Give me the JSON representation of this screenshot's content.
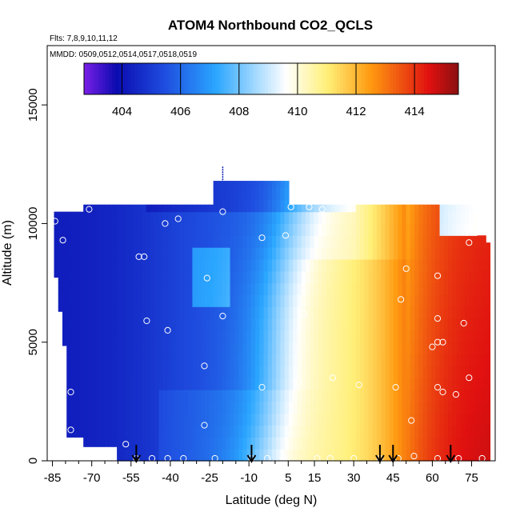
{
  "chart_data": {
    "type": "heatmap",
    "title": "ATOM4 Northbound CO2_QCLS",
    "subtitle_flights": "Flts: 7,8,9,10,11,12",
    "subtitle_dates": "MMDD: 0509,0512,0514,0517,0518,0519",
    "xlabel": "Latitude (deg N)",
    "ylabel": "Altitude (m)",
    "xlim": [
      -87,
      84
    ],
    "ylim": [
      0,
      17500
    ],
    "x_ticks": [
      -85,
      -70,
      -55,
      -40,
      -25,
      -10,
      5,
      15,
      30,
      45,
      60,
      75
    ],
    "y_ticks": [
      0,
      5000,
      10000,
      15000
    ],
    "colorbar": {
      "min": 402.7,
      "max": 415.5,
      "ticks": [
        404,
        406,
        408,
        410,
        412,
        414
      ],
      "colors": [
        "#7a1fe8",
        "#0b0bb0",
        "#1f4fe0",
        "#2aa6ff",
        "#ffffff",
        "#fff07a",
        "#ff9a10",
        "#e01010",
        "#8a1010"
      ],
      "color_stops": [
        402.7,
        403.8,
        405.5,
        407.2,
        409.6,
        411.0,
        412.5,
        414.5,
        415.5
      ]
    },
    "field_summary": [
      {
        "latitude_band": "-85 to -55",
        "typical_co2": 404.1
      },
      {
        "latitude_band": "-55 to -20",
        "typical_co2": 405.5
      },
      {
        "latitude_band": "-20 to 0",
        "typical_co2": 407.5
      },
      {
        "latitude_band": "0 to 20",
        "typical_co2": 410.5
      },
      {
        "latitude_band": "20 to 55",
        "typical_co2": 412.5
      },
      {
        "latitude_band": "55 to 80",
        "typical_co2": 414.5
      }
    ],
    "profile_latitudes_arrows": [
      -53,
      -9,
      40,
      45,
      67
    ],
    "sample_points": [
      {
        "lat": -84,
        "alt": 10100
      },
      {
        "lat": -81,
        "alt": 9300
      },
      {
        "lat": -78,
        "alt": 2900
      },
      {
        "lat": -78,
        "alt": 1300
      },
      {
        "lat": -71,
        "alt": 10600
      },
      {
        "lat": -57,
        "alt": 700
      },
      {
        "lat": -52,
        "alt": 8600
      },
      {
        "lat": -50,
        "alt": 8600
      },
      {
        "lat": -49,
        "alt": 5900
      },
      {
        "lat": -42,
        "alt": 10000
      },
      {
        "lat": -41,
        "alt": 5500
      },
      {
        "lat": -37,
        "alt": 10200
      },
      {
        "lat": -26,
        "alt": 7700
      },
      {
        "lat": -25,
        "alt": 11200
      },
      {
        "lat": -20,
        "alt": 6100
      },
      {
        "lat": -20,
        "alt": 10500
      },
      {
        "lat": -27,
        "alt": 4000
      },
      {
        "lat": -27,
        "alt": 1500
      },
      {
        "lat": -5,
        "alt": 9400
      },
      {
        "lat": -5,
        "alt": 3100
      },
      {
        "lat": 4,
        "alt": 9500
      },
      {
        "lat": 6,
        "alt": 10700
      },
      {
        "lat": 9,
        "alt": 3300
      },
      {
        "lat": 11,
        "alt": 6200
      },
      {
        "lat": 13,
        "alt": 10700
      },
      {
        "lat": 18,
        "alt": 10600
      },
      {
        "lat": 22,
        "alt": 3500
      },
      {
        "lat": 32,
        "alt": 3200
      },
      {
        "lat": 46,
        "alt": 3100
      },
      {
        "lat": 48,
        "alt": 6800
      },
      {
        "lat": 50,
        "alt": 8100
      },
      {
        "lat": 52,
        "alt": 1700
      },
      {
        "lat": 60,
        "alt": 4800
      },
      {
        "lat": 62,
        "alt": 5000
      },
      {
        "lat": 62,
        "alt": 6000
      },
      {
        "lat": 62,
        "alt": 7800
      },
      {
        "lat": 62,
        "alt": 3100
      },
      {
        "lat": 64,
        "alt": 2900
      },
      {
        "lat": 64,
        "alt": 5000
      },
      {
        "lat": 69,
        "alt": 2800
      },
      {
        "lat": 72,
        "alt": 5800
      },
      {
        "lat": 74,
        "alt": 3500
      },
      {
        "lat": 74,
        "alt": 9200
      },
      {
        "lat": 76,
        "alt": 10800
      },
      {
        "lat": 78,
        "alt": 10800
      },
      {
        "lat": -53,
        "alt": 100
      },
      {
        "lat": -47,
        "alt": 100
      },
      {
        "lat": -41,
        "alt": 100
      },
      {
        "lat": -35,
        "alt": 100
      },
      {
        "lat": -23,
        "alt": 100
      },
      {
        "lat": -9,
        "alt": 100
      },
      {
        "lat": -3,
        "alt": 100
      },
      {
        "lat": 3,
        "alt": 100
      },
      {
        "lat": 16,
        "alt": 100
      },
      {
        "lat": 21,
        "alt": 100
      },
      {
        "lat": 30,
        "alt": 100
      },
      {
        "lat": 40,
        "alt": 100
      },
      {
        "lat": 47,
        "alt": 100
      },
      {
        "lat": 53,
        "alt": 200
      },
      {
        "lat": 62,
        "alt": 100
      },
      {
        "lat": 70,
        "alt": 100
      },
      {
        "lat": 79,
        "alt": 100
      }
    ]
  }
}
